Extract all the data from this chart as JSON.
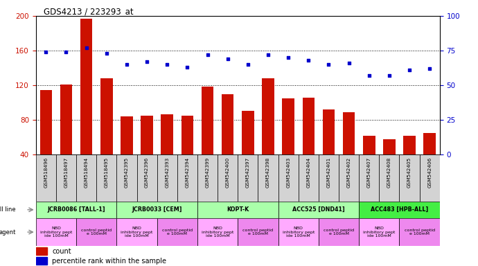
{
  "title": "GDS4213 / 223293_at",
  "gsm_labels": [
    "GSM518496",
    "GSM518497",
    "GSM518494",
    "GSM518495",
    "GSM542395",
    "GSM542396",
    "GSM542393",
    "GSM542394",
    "GSM542399",
    "GSM542400",
    "GSM542397",
    "GSM542398",
    "GSM542403",
    "GSM542404",
    "GSM542401",
    "GSM542402",
    "GSM542407",
    "GSM542408",
    "GSM542405",
    "GSM542406"
  ],
  "bar_values": [
    115,
    121,
    197,
    128,
    84,
    85,
    87,
    85,
    119,
    110,
    91,
    128,
    105,
    106,
    92,
    89,
    62,
    58,
    62,
    65
  ],
  "blue_values": [
    74,
    74,
    77,
    73,
    65,
    67,
    65,
    63,
    72,
    69,
    65,
    72,
    70,
    68,
    65,
    66,
    57,
    57,
    61,
    62
  ],
  "cell_lines": [
    {
      "label": "JCRB0086 [TALL-1]",
      "start": 0,
      "end": 4,
      "color": "#AAFFAA"
    },
    {
      "label": "JCRB0033 [CEM]",
      "start": 4,
      "end": 8,
      "color": "#AAFFAA"
    },
    {
      "label": "KOPT-K",
      "start": 8,
      "end": 12,
      "color": "#AAFFAA"
    },
    {
      "label": "ACC525 [DND41]",
      "start": 12,
      "end": 16,
      "color": "#AAFFAA"
    },
    {
      "label": "ACC483 [HPB-ALL]",
      "start": 16,
      "end": 20,
      "color": "#44EE44"
    }
  ],
  "agents": [
    {
      "label": "NBD\ninhibitory pept\nide 100mM",
      "start": 0,
      "end": 2,
      "color": "#FFAAFF"
    },
    {
      "label": "control peptid\ne 100mM",
      "start": 2,
      "end": 4,
      "color": "#EE88EE"
    },
    {
      "label": "NBD\ninhibitory pept\nide 100mM",
      "start": 4,
      "end": 6,
      "color": "#FFAAFF"
    },
    {
      "label": "control peptid\ne 100mM",
      "start": 6,
      "end": 8,
      "color": "#EE88EE"
    },
    {
      "label": "NBD\ninhibitory pept\nide 100mM",
      "start": 8,
      "end": 10,
      "color": "#FFAAFF"
    },
    {
      "label": "control peptid\ne 100mM",
      "start": 10,
      "end": 12,
      "color": "#EE88EE"
    },
    {
      "label": "NBD\ninhibitory pept\nide 100mM",
      "start": 12,
      "end": 14,
      "color": "#FFAAFF"
    },
    {
      "label": "control peptid\ne 100mM",
      "start": 14,
      "end": 16,
      "color": "#EE88EE"
    },
    {
      "label": "NBD\ninhibitory pept\nide 100mM",
      "start": 16,
      "end": 18,
      "color": "#FFAAFF"
    },
    {
      "label": "control peptid\ne 100mM",
      "start": 18,
      "end": 20,
      "color": "#EE88EE"
    }
  ],
  "ylim_left": [
    40,
    200
  ],
  "yticks_left": [
    40,
    80,
    120,
    160,
    200
  ],
  "ylim_right": [
    0,
    100
  ],
  "yticks_right": [
    0,
    25,
    50,
    75,
    100
  ],
  "bar_color": "#CC1100",
  "dot_color": "#0000CC",
  "background_color": "#FFFFFF",
  "plot_bg_color": "#FFFFFF",
  "grid_color": "black",
  "tick_label_color_left": "#CC1100",
  "tick_label_color_right": "#0000CC",
  "legend_count_color": "#CC1100",
  "legend_pct_color": "#0000CC",
  "bar_width": 0.6,
  "xlabels_bg": "#D3D3D3",
  "cell_line_label_color": "#555555",
  "arrow_color": "#888888"
}
